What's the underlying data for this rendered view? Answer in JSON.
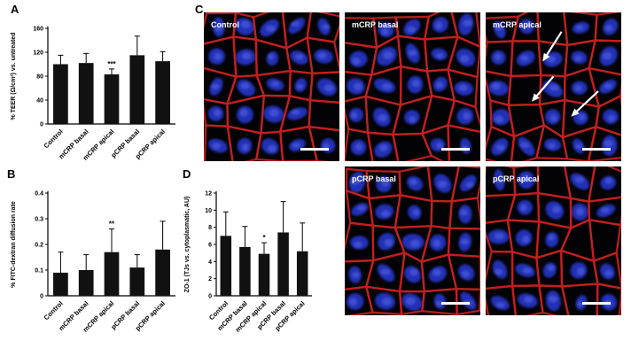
{
  "panels": {
    "A": "A",
    "B": "B",
    "C": "C",
    "D": "D"
  },
  "chart_data": [
    {
      "id": "A",
      "type": "bar",
      "title": "",
      "ylabel": "% TEER (Ω/cm²) vs. untreated",
      "xlabel": "",
      "categories": [
        "Control",
        "mCRP basal",
        "mCRP apical",
        "pCRP basal",
        "pCRP apical"
      ],
      "values": [
        100,
        102,
        83,
        115,
        105
      ],
      "errors": [
        15,
        16,
        9,
        32,
        16
      ],
      "significance": [
        "",
        "",
        "***",
        "",
        ""
      ],
      "ylim": [
        0,
        160
      ],
      "yticks": [
        0,
        40,
        80,
        120,
        160
      ],
      "bar_color": "#111111",
      "grid": false
    },
    {
      "id": "B",
      "type": "bar",
      "title": "",
      "ylabel": "% FITC-dextran diffusion rate",
      "xlabel": "",
      "categories": [
        "Control",
        "mCRP basal",
        "mCRP apical",
        "pCRP basal",
        "pCRP apical"
      ],
      "values": [
        0.09,
        0.1,
        0.17,
        0.11,
        0.18
      ],
      "errors": [
        0.08,
        0.06,
        0.09,
        0.05,
        0.11
      ],
      "significance": [
        "",
        "",
        "**",
        "",
        ""
      ],
      "ylim": [
        0,
        0.4
      ],
      "yticks": [
        0,
        0.1,
        0.2,
        0.3,
        0.4
      ],
      "bar_color": "#111111",
      "grid": false
    },
    {
      "id": "D",
      "type": "bar",
      "title": "",
      "ylabel": "ZO-1 (TJs vs. cytoplasmatic, AU)",
      "xlabel": "",
      "categories": [
        "Control",
        "mCRP basal",
        "mCRP apical",
        "pCRP basal",
        "pCRP apical"
      ],
      "values": [
        7.0,
        5.7,
        4.9,
        7.4,
        5.2
      ],
      "errors": [
        2.8,
        2.4,
        1.3,
        3.6,
        3.3
      ],
      "significance": [
        "",
        "",
        "*",
        "",
        ""
      ],
      "ylim": [
        0,
        12
      ],
      "yticks": [
        0,
        2,
        4,
        6,
        8,
        10,
        12
      ],
      "bar_color": "#111111",
      "grid": false
    }
  ],
  "micrographs": {
    "items": [
      {
        "key": "control",
        "label": "Control",
        "arrow_count": 0
      },
      {
        "key": "mcrp-basal",
        "label": "mCRP basal",
        "arrow_count": 0
      },
      {
        "key": "mcrp-apical",
        "label": "mCRP apical",
        "arrow_count": 3
      },
      {
        "key": "pcrp-basal",
        "label": "pCRP basal",
        "arrow_count": 0
      },
      {
        "key": "pcrp-apical",
        "label": "pCRP apical",
        "arrow_count": 0
      }
    ],
    "colors": {
      "background": "#030305",
      "membrane": "#c41f1f",
      "nucleus": "#2433c0",
      "nucleus_bright": "#4b5ce0",
      "label": "#ffffff"
    }
  }
}
